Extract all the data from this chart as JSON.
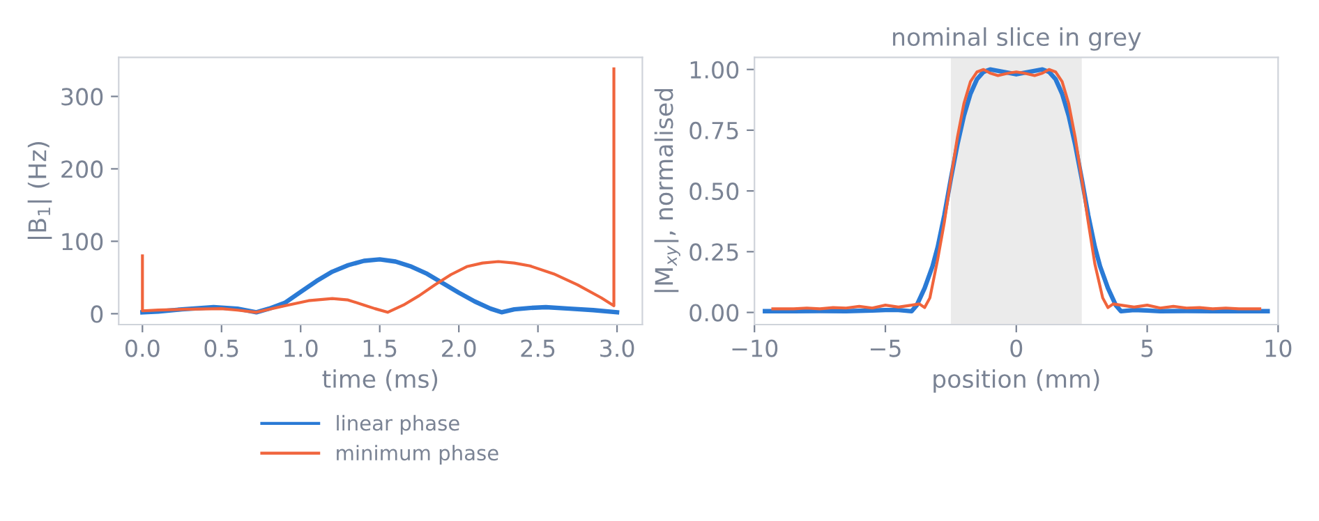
{
  "chart_data": [
    {
      "type": "line",
      "xlabel": "time (ms)",
      "ylabel": "|B$_{1}$| (Hz)",
      "xlim": [
        -0.15,
        3.16
      ],
      "ylim": [
        -15,
        354
      ],
      "xticks": [
        {
          "value": 0,
          "label": "0.0"
        },
        0.5,
        {
          "value": 1,
          "label": "1.0"
        },
        1.5,
        {
          "value": 2,
          "label": "2.0"
        },
        2.5,
        {
          "value": 3,
          "label": "3.0"
        }
      ],
      "yticks": [
        0,
        100,
        200,
        300
      ],
      "legend": "bottom",
      "series": [
        {
          "name": "linear phase",
          "color": "#2a7ad5",
          "x": [
            0,
            0.1,
            0.25,
            0.45,
            0.6,
            0.72,
            0.8,
            0.9,
            1.0,
            1.1,
            1.2,
            1.3,
            1.4,
            1.5,
            1.6,
            1.7,
            1.8,
            1.9,
            2.0,
            2.1,
            2.2,
            2.27,
            2.35,
            2.45,
            2.55,
            2.7,
            2.85,
            3.0
          ],
          "values": [
            2,
            3,
            6,
            9,
            7,
            2,
            7,
            15,
            30,
            45,
            58,
            67,
            73,
            75,
            72,
            65,
            55,
            42,
            29,
            17,
            7,
            2,
            6,
            8,
            9,
            7,
            5,
            2
          ]
        },
        {
          "name": "minimum phase",
          "color": "#f0643c",
          "x": [
            0,
            0,
            0.1,
            0.25,
            0.5,
            0.6,
            0.72,
            0.9,
            1.05,
            1.2,
            1.3,
            1.4,
            1.47,
            1.55,
            1.65,
            1.75,
            1.85,
            1.95,
            2.05,
            2.15,
            2.25,
            2.35,
            2.45,
            2.6,
            2.75,
            2.9,
            2.98,
            2.98
          ],
          "values": [
            80,
            4,
            5,
            6,
            7,
            5,
            2,
            11,
            18,
            21,
            19,
            12,
            7,
            2,
            12,
            25,
            40,
            54,
            65,
            70,
            72,
            70,
            66,
            55,
            40,
            22,
            11,
            338
          ]
        }
      ]
    },
    {
      "type": "line",
      "title": "nominal slice in grey",
      "xlabel": "position (mm)",
      "ylabel": "|M$_{xy}$|, normalised",
      "xlim": [
        -10,
        10
      ],
      "ylim": [
        -0.05,
        1.05
      ],
      "xticks": [
        {
          "value": -10,
          "label": "−10"
        },
        {
          "value": -5,
          "label": "−5"
        },
        0,
        5,
        10
      ],
      "yticks": [
        {
          "value": 0,
          "label": "0.00"
        },
        {
          "value": 0.25,
          "label": "0.25"
        },
        {
          "value": 0.5,
          "label": "0.50"
        },
        {
          "value": 0.75,
          "label": "0.75"
        },
        {
          "value": 1,
          "label": "1.00"
        }
      ],
      "bands": [
        {
          "axis": "x",
          "from": -2.5,
          "to": 2.5,
          "color": "#ebebeb"
        }
      ],
      "series": [
        {
          "color": "#2a7ad5",
          "x": [
            -9.6,
            -8.5,
            -7.5,
            -6.5,
            -5.5,
            -5,
            -4.5,
            -4,
            -3.8,
            -3.5,
            -3.2,
            -3,
            -2.75,
            -2.5,
            -2.25,
            -2,
            -1.75,
            -1.5,
            -1.25,
            -1,
            -0.5,
            0,
            0.5,
            1,
            1.25,
            1.5,
            1.75,
            2,
            2.25,
            2.5,
            2.75,
            3,
            3.2,
            3.5,
            3.8,
            4,
            4.5,
            5,
            5.5,
            6.5,
            7.5,
            8.5,
            9.6
          ],
          "values": [
            0.005,
            0.005,
            0.006,
            0.005,
            0.008,
            0.01,
            0.01,
            0.005,
            0.03,
            0.1,
            0.19,
            0.27,
            0.4,
            0.55,
            0.69,
            0.81,
            0.9,
            0.96,
            0.99,
            1.0,
            0.99,
            0.98,
            0.99,
            1.0,
            0.99,
            0.96,
            0.9,
            0.81,
            0.69,
            0.55,
            0.4,
            0.27,
            0.19,
            0.1,
            0.03,
            0.005,
            0.01,
            0.008,
            0.005,
            0.006,
            0.005,
            0.005,
            0.005
          ]
        },
        {
          "color": "#f0643c",
          "x": [
            -9.3,
            -8.5,
            -8,
            -7.5,
            -7,
            -6.5,
            -6,
            -5.5,
            -5,
            -4.5,
            -4,
            -3.7,
            -3.5,
            -3.3,
            -3,
            -2.75,
            -2.5,
            -2.25,
            -2,
            -1.75,
            -1.5,
            -1.25,
            -1,
            -0.7,
            -0.3,
            0,
            0.3,
            0.7,
            1,
            1.25,
            1.5,
            1.75,
            2,
            2.25,
            2.5,
            2.75,
            3,
            3.3,
            3.5,
            3.7,
            4,
            4.5,
            5,
            5.5,
            6,
            6.5,
            7,
            7.5,
            8,
            8.5,
            9.3
          ],
          "values": [
            0.015,
            0.015,
            0.018,
            0.015,
            0.02,
            0.018,
            0.025,
            0.018,
            0.03,
            0.022,
            0.03,
            0.035,
            0.02,
            0.06,
            0.22,
            0.37,
            0.55,
            0.72,
            0.86,
            0.95,
            0.99,
            1.0,
            0.985,
            0.975,
            0.985,
            0.99,
            0.985,
            0.975,
            0.985,
            1.0,
            0.99,
            0.95,
            0.86,
            0.72,
            0.55,
            0.37,
            0.2,
            0.06,
            0.02,
            0.035,
            0.03,
            0.022,
            0.03,
            0.018,
            0.025,
            0.018,
            0.02,
            0.015,
            0.018,
            0.015,
            0.015
          ]
        }
      ]
    }
  ]
}
